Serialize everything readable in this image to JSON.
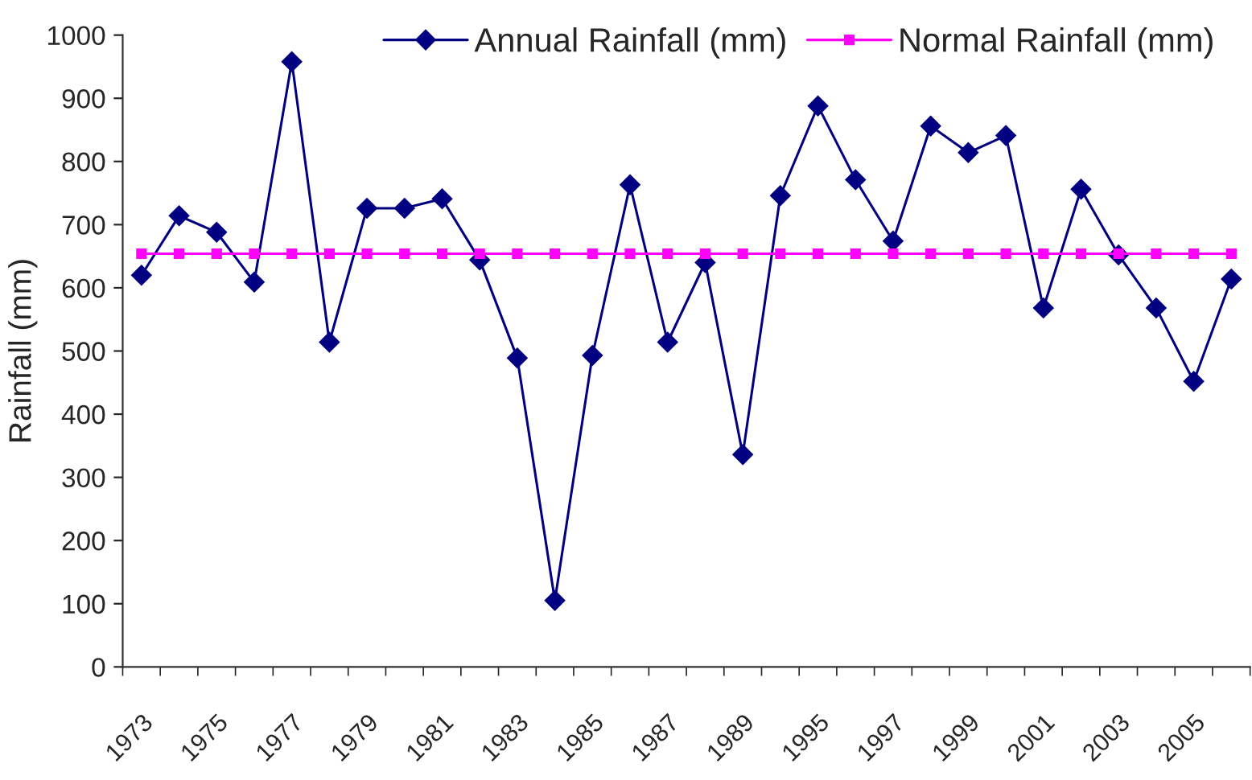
{
  "chart_data": {
    "type": "line",
    "ylabel": "Rainfall (mm)",
    "categories": [
      "1973",
      null,
      "1975",
      null,
      "1977",
      null,
      "1979",
      null,
      "1981",
      null,
      "1983",
      null,
      "1985",
      null,
      "1987",
      null,
      "1989",
      null,
      "1995",
      null,
      "1997",
      null,
      "1999",
      null,
      "2001",
      null,
      "2003",
      null,
      "2005",
      null
    ],
    "series": [
      {
        "name": "Annual Rainfall (mm)",
        "color": "#000080",
        "marker": "diamond",
        "values": [
          620,
          714,
          688,
          609,
          958,
          514,
          726,
          726,
          741,
          644,
          489,
          105,
          493,
          763,
          514,
          640,
          336,
          746,
          888,
          771,
          674,
          856,
          814,
          841,
          568,
          756,
          652,
          568,
          452,
          614
        ]
      },
      {
        "name": "Normal Rainfall (mm)",
        "color": "#ff00ff",
        "marker": "square",
        "values": [
          654,
          654,
          654,
          654,
          654,
          654,
          654,
          654,
          654,
          654,
          654,
          654,
          654,
          654,
          654,
          654,
          654,
          654,
          654,
          654,
          654,
          654,
          654,
          654,
          654,
          654,
          654,
          654,
          654,
          654
        ]
      }
    ],
    "ylim": [
      0,
      1000
    ],
    "yticks": [
      0,
      100,
      200,
      300,
      400,
      500,
      600,
      700,
      800,
      900,
      1000
    ],
    "grid": false,
    "legend": "top",
    "line_style": "solid"
  }
}
